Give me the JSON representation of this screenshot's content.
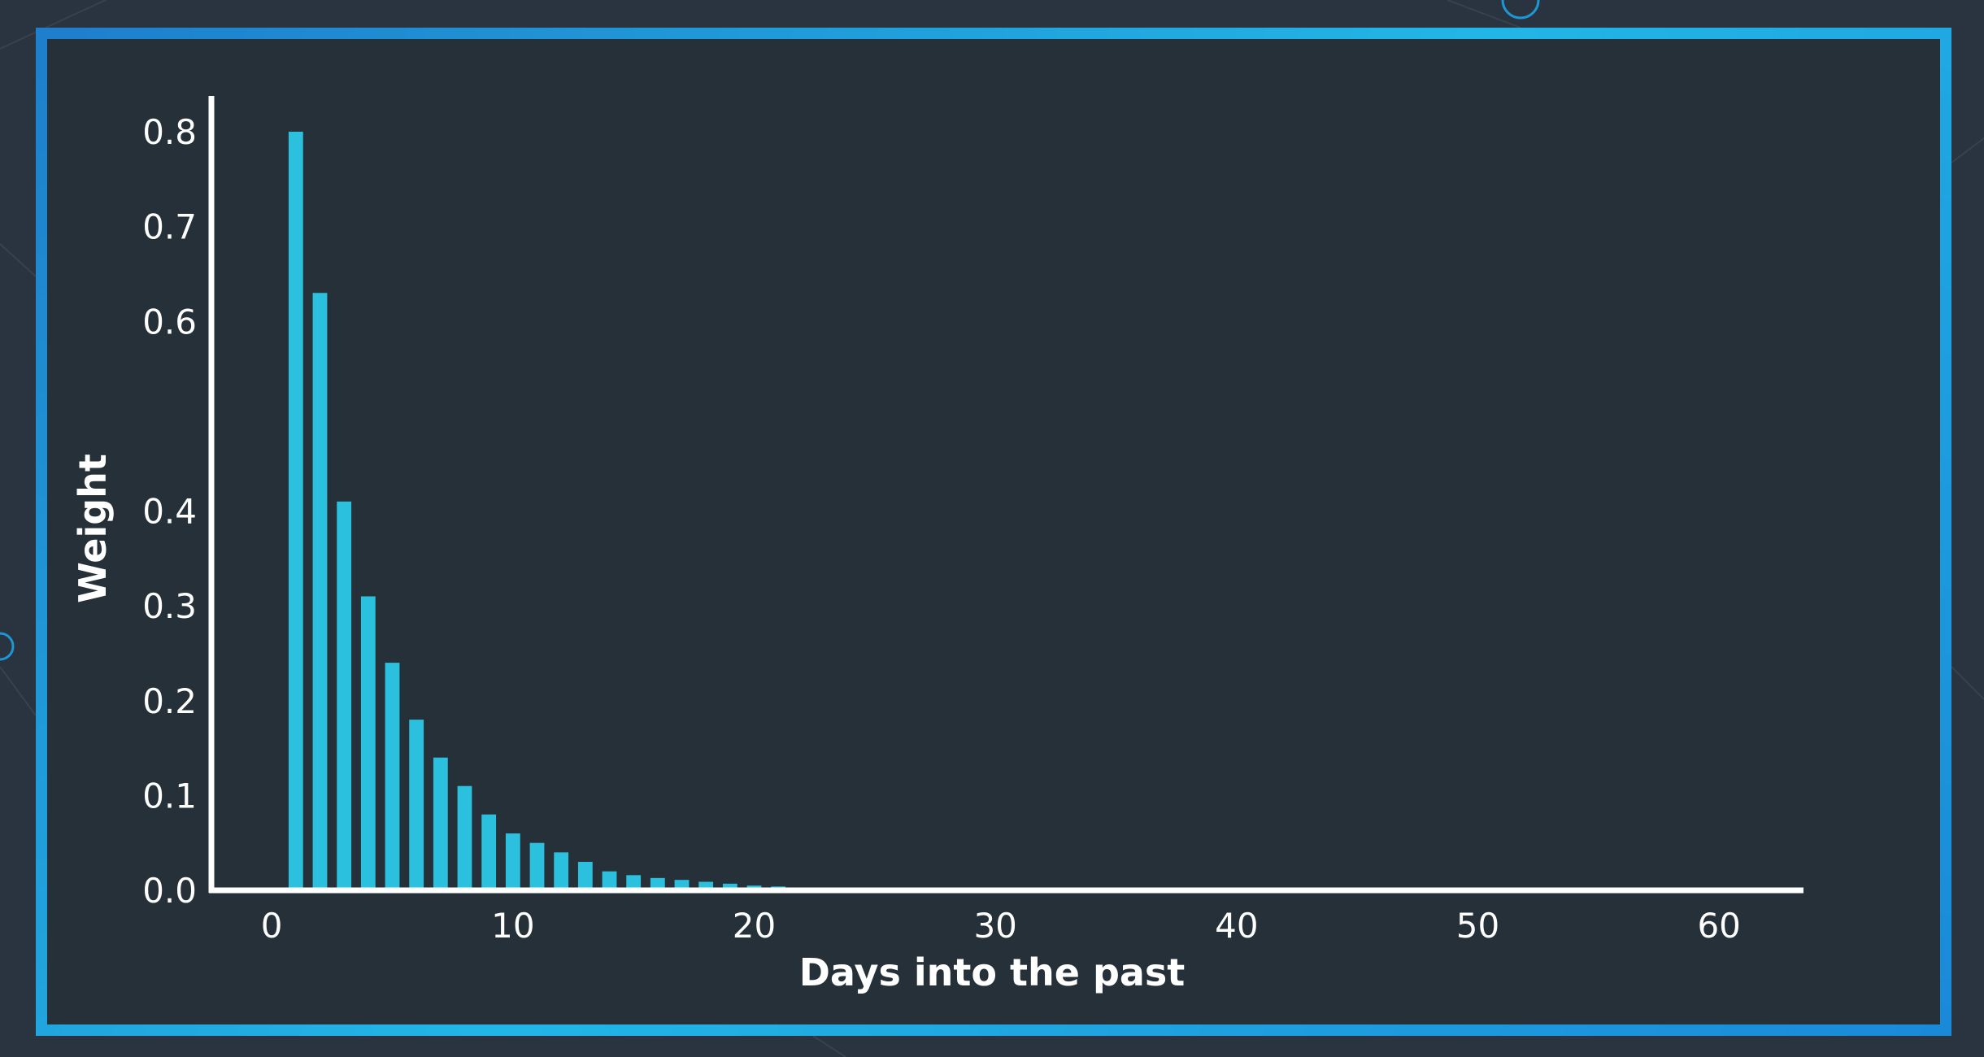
{
  "colors": {
    "background": "#2a3340",
    "panel": "#263039",
    "frame": "#1e96d3",
    "bar": "#2bc0dd",
    "axis": "#ffffff",
    "text": "#ffffff"
  },
  "chart_data": {
    "type": "bar",
    "title": "",
    "xlabel": "Days into the past",
    "ylabel": "Weight",
    "x": [
      1,
      2,
      3,
      4,
      5,
      6,
      7,
      8,
      9,
      10,
      11,
      12,
      13,
      14,
      15,
      16,
      17,
      18,
      19,
      20,
      21,
      22,
      23,
      24
    ],
    "values": [
      0.8,
      0.63,
      0.41,
      0.31,
      0.24,
      0.18,
      0.14,
      0.11,
      0.08,
      0.06,
      0.05,
      0.04,
      0.03,
      0.02,
      0.016,
      0.013,
      0.011,
      0.009,
      0.007,
      0.005,
      0.004,
      0.003,
      0.002,
      0.001
    ],
    "xlim": [
      -2.5,
      63.5
    ],
    "ylim": [
      0.0,
      0.8
    ],
    "xticks": [
      0,
      10,
      20,
      30,
      40,
      50,
      60
    ],
    "yticks": [
      0.0,
      0.1,
      0.2,
      0.3,
      0.4,
      0.6,
      0.7,
      0.8
    ],
    "xtick_labels": [
      "0",
      "10",
      "20",
      "30",
      "40",
      "50",
      "60"
    ],
    "ytick_labels": [
      "0.0",
      "0.1",
      "0.2",
      "0.3",
      "0.4",
      "0.6",
      "0.7",
      "0.8"
    ],
    "grid": false,
    "legend": "none"
  }
}
